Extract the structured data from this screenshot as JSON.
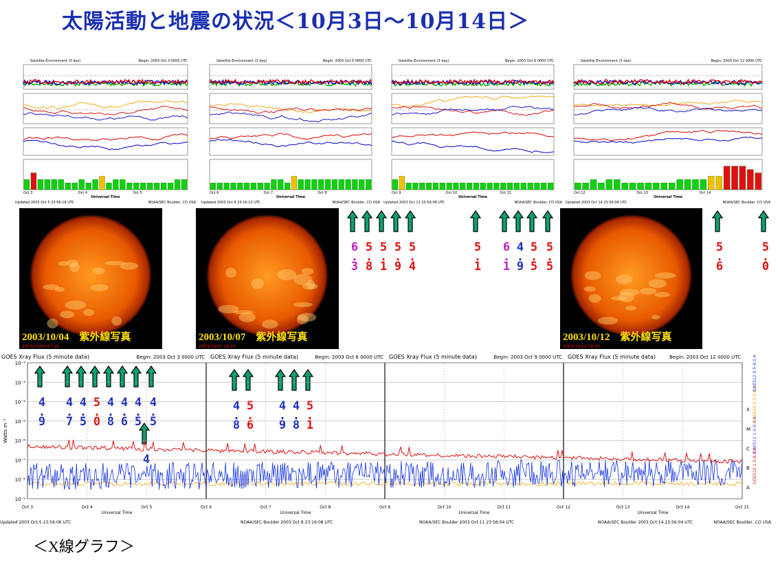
{
  "header": {
    "title": "太陽活動と地震の状況＜10月3日～10月14日＞"
  },
  "satellite_panels": [
    {
      "title": "Satellite Environment (3 day)",
      "begin": "Begin: 2003 Oct 3 0000 UTC",
      "x_labels": [
        "Oct 3",
        "Oct 4",
        "Oct 5"
      ],
      "x_axis_label": "Universal Time",
      "footer_left": "Updated 2003 Oct 5 23:56:18 UTC",
      "footer_right": "NOAA/SEC Boulder, CO USA",
      "kp": [
        3,
        5,
        3,
        3,
        3,
        3,
        2,
        2,
        3,
        2,
        3,
        4,
        2,
        3,
        3,
        2,
        2,
        2,
        2,
        2,
        2,
        2,
        3,
        3
      ]
    },
    {
      "title": "Satellite Environment (3 day)",
      "begin": "Begin: 2003 Oct 6 0000 UTC",
      "x_labels": [
        "Oct 6",
        "Oct 7",
        "Oct 8"
      ],
      "x_axis_label": "Universal Time",
      "footer_left": "Updated 2003 Oct 8 23:16:12 UTC",
      "footer_right": "NOAA/SEC Boulder, CO USA",
      "kp": [
        2,
        2,
        2,
        2,
        2,
        2,
        2,
        2,
        2,
        3,
        3,
        2,
        4,
        3,
        3,
        3,
        3,
        3,
        3,
        3,
        3,
        3,
        3,
        3
      ]
    },
    {
      "title": "Satellite Environment (3 day)",
      "begin": "Begin: 2003 Oct 9 0000 UTC",
      "x_labels": [
        "Oct 9",
        "Oct 10",
        "Oct 11"
      ],
      "x_axis_label": "Universal Time",
      "footer_left": "Updated 2003 Oct 11 23:56:08 UTC",
      "footer_right": "NOAA/SEC Boulder, CO USA",
      "kp": [
        3,
        4,
        2,
        2,
        2,
        2,
        2,
        2,
        2,
        2,
        2,
        2,
        2,
        2,
        2,
        2,
        2,
        2,
        2,
        2,
        2,
        2,
        2,
        2
      ]
    },
    {
      "title": "Satellite Environment (3 day)",
      "begin": "Begin: 2003 Oct 12 0000 UTC",
      "x_labels": [
        "Oct 12",
        "Oct 13",
        "Oct 14"
      ],
      "x_axis_label": "Universal Time",
      "footer_left": "Updated 2003 Oct 14 23:56:04 UTC",
      "footer_right": "NOAA/SEC Boulder, CO USA",
      "kp": [
        2,
        2,
        3,
        2,
        3,
        3,
        2,
        2,
        2,
        2,
        2,
        2,
        2,
        3,
        3,
        3,
        3,
        4,
        4,
        7,
        7,
        7,
        6,
        5
      ]
    }
  ],
  "kp_ylim": [
    0,
    9
  ],
  "photos": [
    {
      "caption": "2003/10/04　紫外線写真",
      "stamp": "2003/10/04 07:19"
    },
    {
      "caption": "2003/10/07　紫外線写真",
      "stamp": "2003/10/07 19:20"
    },
    {
      "caption": "2003/10/12　紫外線写真",
      "stamp": "2003/10/12 19:20"
    }
  ],
  "earthquakes_top": [
    "6.3",
    "5.8",
    "5.1",
    "5.9",
    "5.4",
    "5.1",
    "6.1",
    "4.9",
    "5.5",
    "5.5",
    "5.6",
    "5.0"
  ],
  "earthquakes_bottom": [
    "4.9",
    "4.7",
    "4.5",
    "5.0",
    "4.8",
    "4.6",
    "4.5",
    "4.5",
    "4",
    "4.8",
    "5.6",
    "4.9",
    "4.8",
    "5.1"
  ],
  "xray": {
    "panels": [
      {
        "title": "GOES Xray Flux (5 minute data)",
        "begin": "Begin: 2003 Oct 3 0000 UTC",
        "footer": "Updated 2003 Oct 5 23:56:06 UTC"
      },
      {
        "title": "GOES Xray Flux (5 minute data)",
        "begin": "Begin: 2003 Oct 6 0000 UTC",
        "footer": "NOAA/SEC Boulder 2003 Oct 8 23:16:08 UTC"
      },
      {
        "title": "GOES Xray Flux (5 minute data)",
        "begin": "Begin: 2003 Oct 9 0000 UTC",
        "footer": "NOAA/SEC Boulder 2003 Oct 11 23:56:04 UTC"
      },
      {
        "title": "GOES Xray Flux (5 minute data)",
        "begin": "Begin: 2003 Oct 12 0000 UTC",
        "footer": "NOAA/SEC Boulder 2003 Oct 14 23:56:04 UTC"
      }
    ],
    "y_label": "Watts m⁻²",
    "y_ticks": [
      "10⁻²",
      "10⁻³",
      "10⁻⁴",
      "10⁻⁵",
      "10⁻⁶",
      "10⁻⁷",
      "10⁻⁸",
      "10⁻⁹"
    ],
    "classes": [
      "X",
      "M",
      "C",
      "B",
      "A"
    ],
    "x_labels": [
      "Oct 3",
      "Oct 4",
      "Oct 5",
      "Oct 6",
      "Oct 7",
      "Oct 8",
      "Oct 9",
      "Oct 10",
      "Oct 11",
      "Oct 12",
      "Oct 13",
      "Oct 14",
      "Oct 15"
    ],
    "x_axis_label": "Universal Time",
    "legend": [
      "GOES10 1.0-8.0 A",
      "GOES12 1.0-8.0 A",
      "GOES10 0.5-4.0 A",
      "GOES12 0.5-4.0 A"
    ],
    "footer_right": "NOAA/SEC Boulder, CO USA"
  },
  "caption": "＜X線グラフ＞"
}
